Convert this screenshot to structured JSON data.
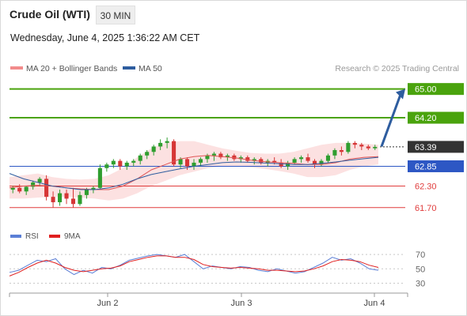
{
  "header": {
    "title": "Crude Oil (WTI)",
    "timeframe": "30 MIN",
    "datetime": "Wednesday, June 4, 2025 1:36:22 AM CET"
  },
  "legend": {
    "items": [
      {
        "label": "MA 20 + Bollinger Bands",
        "color": "#f28b8b"
      },
      {
        "label": "MA 50",
        "color": "#2e5d9f"
      }
    ],
    "credit": "Research © 2025 Trading Central"
  },
  "chart_data": [
    {
      "type": "line",
      "series": [
        {
          "name": "MA 20 + Bollinger Bands",
          "color": "#e05555",
          "values": [
            62.25,
            62.3,
            62.32,
            62.3,
            62.25,
            62.22,
            62.2,
            62.2,
            62.3,
            62.5,
            62.75,
            62.9,
            63.05,
            63.12,
            63.15,
            63.12,
            63.08,
            63.02,
            62.98,
            62.95,
            62.93,
            62.9,
            62.9,
            62.95,
            63.05,
            63.1,
            63.12
          ]
        },
        {
          "name": "MA 50",
          "color": "#2e5d9f",
          "values": [
            62.65,
            62.5,
            62.4,
            62.3,
            62.25,
            62.2,
            62.2,
            62.25,
            62.35,
            62.5,
            62.62,
            62.7,
            62.78,
            62.85,
            62.9,
            62.95,
            62.97,
            62.96,
            62.94,
            62.92,
            62.9,
            62.9,
            62.93,
            62.97,
            63.02,
            63.06,
            63.1
          ]
        }
      ],
      "bands": {
        "upper": [
          62.55,
          62.6,
          62.65,
          62.55,
          62.5,
          62.48,
          62.5,
          62.6,
          62.8,
          63.1,
          63.35,
          63.5,
          63.55,
          63.55,
          63.45,
          63.35,
          63.28,
          63.22,
          63.2,
          63.2,
          63.25,
          63.35,
          63.45,
          63.5,
          63.5,
          63.48,
          63.45
        ],
        "lower": [
          61.95,
          61.95,
          61.98,
          62.0,
          62.0,
          61.98,
          61.95,
          61.9,
          61.95,
          62.1,
          62.3,
          62.45,
          62.6,
          62.7,
          62.8,
          62.85,
          62.85,
          62.82,
          62.78,
          62.72,
          62.65,
          62.55,
          62.55,
          62.6,
          62.75,
          62.85,
          62.9
        ]
      },
      "ohlc": [
        [
          62.2,
          62.3,
          62.1,
          62.25
        ],
        [
          62.25,
          62.35,
          62.1,
          62.15
        ],
        [
          62.15,
          62.3,
          62.05,
          62.28
        ],
        [
          62.28,
          62.45,
          62.2,
          62.4
        ],
        [
          62.4,
          62.55,
          62.3,
          62.5
        ],
        [
          62.5,
          62.6,
          61.9,
          62.0
        ],
        [
          62.0,
          62.15,
          61.7,
          61.85
        ],
        [
          61.85,
          62.2,
          61.75,
          62.1
        ],
        [
          62.1,
          62.2,
          61.8,
          61.95
        ],
        [
          61.95,
          62.25,
          61.7,
          61.8
        ],
        [
          61.8,
          62.15,
          61.75,
          62.05
        ],
        [
          62.05,
          62.25,
          61.95,
          62.2
        ],
        [
          62.2,
          62.3,
          62.1,
          62.25
        ],
        [
          62.25,
          62.9,
          62.2,
          62.8
        ],
        [
          62.8,
          62.95,
          62.7,
          62.9
        ],
        [
          62.9,
          63.05,
          62.8,
          63.0
        ],
        [
          63.0,
          63.05,
          62.75,
          62.85
        ],
        [
          62.85,
          63.0,
          62.75,
          62.95
        ],
        [
          62.95,
          63.05,
          62.85,
          63.0
        ],
        [
          63.0,
          63.2,
          62.9,
          63.15
        ],
        [
          63.15,
          63.3,
          63.05,
          63.25
        ],
        [
          63.25,
          63.45,
          63.15,
          63.4
        ],
        [
          63.4,
          63.6,
          63.3,
          63.5
        ],
        [
          63.5,
          63.65,
          63.35,
          63.55
        ],
        [
          63.55,
          63.6,
          62.85,
          62.9
        ],
        [
          62.9,
          63.1,
          62.8,
          63.05
        ],
        [
          63.05,
          63.1,
          62.75,
          62.85
        ],
        [
          62.85,
          63.05,
          62.75,
          62.95
        ],
        [
          62.95,
          63.1,
          62.85,
          63.05
        ],
        [
          63.05,
          63.2,
          62.95,
          63.15
        ],
        [
          63.15,
          63.25,
          63.0,
          63.2
        ],
        [
          63.2,
          63.25,
          63.05,
          63.1
        ],
        [
          63.1,
          63.2,
          63.0,
          63.15
        ],
        [
          63.15,
          63.2,
          63.0,
          63.05
        ],
        [
          63.05,
          63.15,
          62.95,
          63.1
        ],
        [
          63.1,
          63.15,
          62.95,
          63.0
        ],
        [
          63.0,
          63.1,
          62.9,
          63.05
        ],
        [
          63.05,
          63.1,
          62.9,
          62.95
        ],
        [
          62.95,
          63.05,
          62.85,
          63.0
        ],
        [
          63.0,
          63.1,
          62.9,
          62.95
        ],
        [
          62.95,
          63.05,
          62.8,
          62.85
        ],
        [
          62.85,
          63.0,
          62.75,
          62.95
        ],
        [
          62.95,
          63.1,
          62.9,
          63.05
        ],
        [
          63.05,
          63.15,
          62.95,
          63.1
        ],
        [
          63.1,
          63.2,
          62.95,
          63.0
        ],
        [
          63.0,
          63.05,
          62.8,
          62.9
        ],
        [
          62.9,
          63.05,
          62.85,
          63.0
        ],
        [
          63.0,
          63.2,
          62.95,
          63.15
        ],
        [
          63.15,
          63.35,
          63.05,
          63.3
        ],
        [
          63.3,
          63.4,
          63.15,
          63.25
        ],
        [
          63.25,
          63.55,
          63.2,
          63.5
        ],
        [
          63.5,
          63.55,
          63.35,
          63.45
        ],
        [
          63.45,
          63.5,
          63.3,
          63.4
        ],
        [
          63.4,
          63.45,
          63.3,
          63.35
        ],
        [
          63.35,
          63.45,
          63.3,
          63.39
        ]
      ],
      "ylim": [
        61.3,
        65.3
      ],
      "levels": [
        {
          "value": 65.0,
          "label": "65.00",
          "color": "#4aa30d",
          "kind": "resistance"
        },
        {
          "value": 64.2,
          "label": "64.20",
          "color": "#4aa30d",
          "kind": "resistance"
        },
        {
          "value": 63.39,
          "label": "63.39",
          "color": "#333333",
          "kind": "last"
        },
        {
          "value": 62.85,
          "label": "62.85",
          "color": "#2d57c4",
          "kind": "pivot"
        },
        {
          "value": 62.3,
          "label": "62.30",
          "color": "#e03c3c",
          "kind": "support"
        },
        {
          "value": 61.7,
          "label": "61.70",
          "color": "#e03c3c",
          "kind": "support"
        }
      ],
      "projection": {
        "from": 63.4,
        "to": 65.0
      }
    },
    {
      "type": "line",
      "series": [
        {
          "name": "RSI",
          "color": "#5b7fd6",
          "values": [
            45,
            48,
            55,
            62,
            60,
            64,
            50,
            42,
            48,
            44,
            52,
            50,
            55,
            62,
            65,
            68,
            70,
            68,
            66,
            70,
            60,
            50,
            54,
            52,
            50,
            53,
            52,
            48,
            46,
            50,
            47,
            44,
            46,
            52,
            58,
            66,
            62,
            64,
            58,
            50,
            48
          ]
        },
        {
          "name": "9MA",
          "color": "#e02020",
          "values": [
            40,
            45,
            52,
            58,
            62,
            58,
            52,
            48,
            46,
            48,
            50,
            51,
            54,
            60,
            63,
            66,
            68,
            68,
            66,
            66,
            63,
            56,
            53,
            52,
            51,
            52,
            51,
            50,
            48,
            48,
            47,
            46,
            47,
            50,
            54,
            60,
            63,
            62,
            60,
            55,
            52
          ]
        }
      ],
      "ylim": [
        25,
        80
      ],
      "ticks": [
        70,
        50,
        30
      ]
    }
  ],
  "x_axis": {
    "labels": [
      "Jun 2",
      "Jun 3",
      "Jun 4"
    ]
  }
}
